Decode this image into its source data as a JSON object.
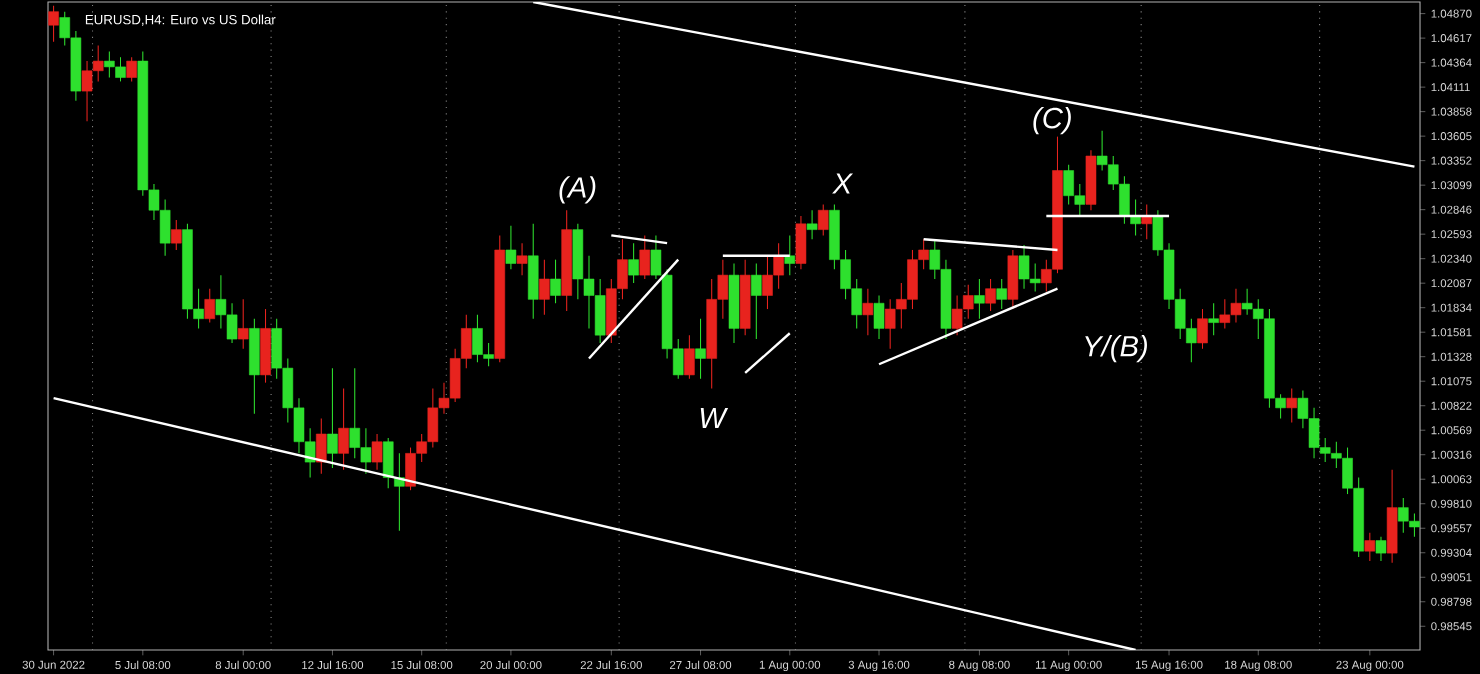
{
  "chart_data": {
    "type": "candlestick",
    "title": "EURUSD,H4:  Euro vs US Dollar",
    "categories": [
      "30 Jun 2022",
      null,
      null,
      null,
      null,
      null,
      null,
      null,
      "5 Jul 08:00",
      null,
      null,
      null,
      null,
      null,
      null,
      null,
      null,
      "8 Jul 00:00",
      null,
      null,
      null,
      null,
      null,
      null,
      null,
      "12 Jul 16:00",
      null,
      null,
      null,
      null,
      null,
      null,
      null,
      "15 Jul 08:00",
      null,
      null,
      null,
      null,
      null,
      null,
      null,
      "20 Jul 00:00",
      null,
      null,
      null,
      null,
      null,
      null,
      null,
      null,
      "22 Jul 16:00",
      null,
      null,
      null,
      null,
      null,
      null,
      null,
      "27 Jul 08:00",
      null,
      null,
      null,
      null,
      null,
      null,
      null,
      "1 Aug 00:00",
      null,
      null,
      null,
      null,
      null,
      null,
      null,
      "3 Aug 16:00",
      null,
      null,
      null,
      null,
      null,
      null,
      null,
      null,
      "8 Aug 08:00",
      null,
      null,
      null,
      null,
      null,
      null,
      null,
      "11 Aug 00:00",
      null,
      null,
      null,
      null,
      null,
      null,
      null,
      null,
      "15 Aug 16:00",
      null,
      null,
      null,
      null,
      null,
      null,
      null,
      "18 Aug 08:00",
      null,
      null,
      null,
      null,
      null,
      null,
      null,
      null,
      null,
      "23 Aug 00:00",
      null,
      null,
      null,
      null
    ],
    "ohlc": [
      [
        1.0475,
        1.0495,
        1.0458,
        1.0489
      ],
      [
        1.0483,
        1.0489,
        1.0454,
        1.0462
      ],
      [
        1.0462,
        1.0469,
        1.0397,
        1.0407
      ],
      [
        1.0407,
        1.0438,
        1.0376,
        1.0428
      ],
      [
        1.0428,
        1.0454,
        1.0417,
        1.0438
      ],
      [
        1.0438,
        1.0448,
        1.0421,
        1.0432
      ],
      [
        1.0432,
        1.0442,
        1.0417,
        1.0421
      ],
      [
        1.0421,
        1.0442,
        1.0417,
        1.0438
      ],
      [
        1.0438,
        1.0448,
        1.0299,
        1.0305
      ],
      [
        1.0305,
        1.0311,
        1.0274,
        1.0284
      ],
      [
        1.0284,
        1.0295,
        1.0237,
        1.025
      ],
      [
        1.025,
        1.0274,
        1.0243,
        1.0264
      ],
      [
        1.0264,
        1.027,
        1.0172,
        1.0182
      ],
      [
        1.0182,
        1.0203,
        1.0162,
        1.0172
      ],
      [
        1.0172,
        1.0203,
        1.0168,
        1.0192
      ],
      [
        1.0192,
        1.0217,
        1.0162,
        1.0176
      ],
      [
        1.0176,
        1.0188,
        1.0147,
        1.0151
      ],
      [
        1.0151,
        1.0192,
        1.0141,
        1.0162
      ],
      [
        1.0162,
        1.0172,
        1.0074,
        1.0114
      ],
      [
        1.0114,
        1.0182,
        1.0106,
        1.0162
      ],
      [
        1.0162,
        1.0172,
        1.011,
        1.0121
      ],
      [
        1.0121,
        1.0131,
        1.0065,
        1.008
      ],
      [
        1.008,
        1.009,
        1.0033,
        1.0045
      ],
      [
        1.0045,
        1.0059,
        1.0008,
        1.0024
      ],
      [
        1.0024,
        1.0069,
        1.0012,
        1.0053
      ],
      [
        1.0053,
        1.0121,
        1.0018,
        1.0033
      ],
      [
        1.0033,
        1.01,
        1.0016,
        1.0059
      ],
      [
        1.0059,
        1.0121,
        1.0028,
        1.0039
      ],
      [
        1.0039,
        1.0059,
        1.0012,
        1.0024
      ],
      [
        1.0024,
        1.0053,
        1.0016,
        1.0045
      ],
      [
        1.0045,
        1.0049,
        0.9997,
        1.0008
      ],
      [
        1.0008,
        1.0033,
        0.9953,
        0.9999
      ],
      [
        0.9999,
        1.0039,
        0.9995,
        1.0033
      ],
      [
        1.0033,
        1.0053,
        1.0024,
        1.0045
      ],
      [
        1.0045,
        1.01,
        1.0039,
        1.008
      ],
      [
        1.008,
        1.0106,
        1.0074,
        1.009
      ],
      [
        1.009,
        1.0141,
        1.0086,
        1.0131
      ],
      [
        1.0131,
        1.0176,
        1.0121,
        1.0162
      ],
      [
        1.0162,
        1.0176,
        1.0127,
        1.0135
      ],
      [
        1.0135,
        1.0147,
        1.0123,
        1.0131
      ],
      [
        1.0131,
        1.0258,
        1.0127,
        1.0243
      ],
      [
        1.0243,
        1.0268,
        1.0223,
        1.0229
      ],
      [
        1.0229,
        1.025,
        1.0217,
        1.0237
      ],
      [
        1.0237,
        1.027,
        1.0172,
        1.0192
      ],
      [
        1.0192,
        1.0233,
        1.0176,
        1.0213
      ],
      [
        1.0213,
        1.0233,
        1.0188,
        1.0196
      ],
      [
        1.0196,
        1.0284,
        1.018,
        1.0264
      ],
      [
        1.0264,
        1.027,
        1.0192,
        1.0213
      ],
      [
        1.0213,
        1.0237,
        1.0162,
        1.0196
      ],
      [
        1.0196,
        1.0213,
        1.0147,
        1.0155
      ],
      [
        1.0155,
        1.0213,
        1.0147,
        1.0203
      ],
      [
        1.0203,
        1.0254,
        1.0192,
        1.0233
      ],
      [
        1.0233,
        1.025,
        1.0209,
        1.0217
      ],
      [
        1.0217,
        1.0258,
        1.0213,
        1.0243
      ],
      [
        1.0243,
        1.0258,
        1.0213,
        1.0217
      ],
      [
        1.0217,
        1.0223,
        1.0131,
        1.0141
      ],
      [
        1.0141,
        1.0151,
        1.011,
        1.0114
      ],
      [
        1.0114,
        1.0155,
        1.011,
        1.0141
      ],
      [
        1.0141,
        1.0172,
        1.011,
        1.0131
      ],
      [
        1.0131,
        1.0213,
        1.01,
        1.0192
      ],
      [
        1.0192,
        1.0233,
        1.0172,
        1.0217
      ],
      [
        1.0217,
        1.0229,
        1.0147,
        1.0162
      ],
      [
        1.0162,
        1.0233,
        1.0155,
        1.0217
      ],
      [
        1.0217,
        1.0229,
        1.0151,
        1.0196
      ],
      [
        1.0196,
        1.0237,
        1.0182,
        1.0217
      ],
      [
        1.0217,
        1.025,
        1.0203,
        1.0237
      ],
      [
        1.0237,
        1.0258,
        1.0217,
        1.0229
      ],
      [
        1.0229,
        1.0278,
        1.0223,
        1.027
      ],
      [
        1.027,
        1.0284,
        1.0254,
        1.0264
      ],
      [
        1.0264,
        1.029,
        1.0258,
        1.0284
      ],
      [
        1.0284,
        1.029,
        1.0223,
        1.0233
      ],
      [
        1.0233,
        1.0243,
        1.0192,
        1.0203
      ],
      [
        1.0203,
        1.0213,
        1.0162,
        1.0176
      ],
      [
        1.0176,
        1.0203,
        1.0155,
        1.0188
      ],
      [
        1.0188,
        1.0196,
        1.0151,
        1.0162
      ],
      [
        1.0162,
        1.0192,
        1.0141,
        1.0182
      ],
      [
        1.0182,
        1.0209,
        1.0162,
        1.0192
      ],
      [
        1.0192,
        1.0243,
        1.0182,
        1.0233
      ],
      [
        1.0233,
        1.0254,
        1.0223,
        1.0243
      ],
      [
        1.0243,
        1.0254,
        1.0213,
        1.0223
      ],
      [
        1.0223,
        1.0233,
        1.0151,
        1.0162
      ],
      [
        1.0162,
        1.0196,
        1.0155,
        1.0182
      ],
      [
        1.0182,
        1.0207,
        1.0172,
        1.0196
      ],
      [
        1.0196,
        1.0213,
        1.0172,
        1.0188
      ],
      [
        1.0188,
        1.0213,
        1.018,
        1.0203
      ],
      [
        1.0203,
        1.0213,
        1.0182,
        1.0192
      ],
      [
        1.0192,
        1.0243,
        1.0182,
        1.0237
      ],
      [
        1.0237,
        1.0248,
        1.0203,
        1.0213
      ],
      [
        1.0213,
        1.0229,
        1.02,
        1.0209
      ],
      [
        1.0209,
        1.0233,
        1.02,
        1.0223
      ],
      [
        1.0223,
        1.036,
        1.0219,
        1.0325
      ],
      [
        1.0325,
        1.0331,
        1.029,
        1.0299
      ],
      [
        1.0299,
        1.0311,
        1.0278,
        1.029
      ],
      [
        1.029,
        1.0346,
        1.0284,
        1.034
      ],
      [
        1.034,
        1.0366,
        1.0325,
        1.0331
      ],
      [
        1.0331,
        1.034,
        1.0305,
        1.0311
      ],
      [
        1.0311,
        1.0319,
        1.027,
        1.0278
      ],
      [
        1.0278,
        1.0295,
        1.0258,
        1.027
      ],
      [
        1.027,
        1.029,
        1.0254,
        1.0278
      ],
      [
        1.0278,
        1.0284,
        1.0237,
        1.0243
      ],
      [
        1.0243,
        1.025,
        1.0182,
        1.0192
      ],
      [
        1.0192,
        1.0203,
        1.0151,
        1.0162
      ],
      [
        1.0162,
        1.0172,
        1.0127,
        1.0147
      ],
      [
        1.0147,
        1.0182,
        1.0141,
        1.0172
      ],
      [
        1.0172,
        1.0188,
        1.0155,
        1.0168
      ],
      [
        1.0168,
        1.0192,
        1.0162,
        1.0176
      ],
      [
        1.0176,
        1.0203,
        1.0168,
        1.0188
      ],
      [
        1.0188,
        1.0203,
        1.0176,
        1.0182
      ],
      [
        1.0182,
        1.0192,
        1.0151,
        1.0172
      ],
      [
        1.0172,
        1.0182,
        1.008,
        1.009
      ],
      [
        1.009,
        1.0094,
        1.0069,
        1.008
      ],
      [
        1.008,
        1.01,
        1.0065,
        1.009
      ],
      [
        1.009,
        1.0098,
        1.0059,
        1.0069
      ],
      [
        1.0069,
        1.008,
        1.0028,
        1.0039
      ],
      [
        1.0039,
        1.0049,
        1.0024,
        1.0033
      ],
      [
        1.0033,
        1.0045,
        1.0018,
        1.0028
      ],
      [
        1.0028,
        1.0039,
        0.9991,
        0.9997
      ],
      [
        0.9997,
        1.0008,
        0.9926,
        0.9932
      ],
      [
        0.9932,
        0.9951,
        0.9922,
        0.9943
      ],
      [
        0.9943,
        0.9947,
        0.9922,
        0.993
      ],
      [
        0.993,
        1.0016,
        0.992,
        0.9977
      ],
      [
        0.9977,
        0.9987,
        0.9951,
        0.9963
      ],
      [
        0.9963,
        0.9971,
        0.9947,
        0.9957
      ]
    ],
    "colors": [
      "#e8231e",
      "#2ee02e",
      "#2ee02e",
      "#e8231e",
      "#e8231e",
      "#2ee02e",
      "#2ee02e",
      "#e8231e",
      "#2ee02e",
      "#2ee02e",
      "#2ee02e",
      "#e8231e",
      "#2ee02e",
      "#2ee02e",
      "#e8231e",
      "#2ee02e",
      "#2ee02e",
      "#e8231e",
      "#2ee02e",
      "#e8231e",
      "#2ee02e",
      "#2ee02e",
      "#2ee02e",
      "#2ee02e",
      "#e8231e",
      "#2ee02e",
      "#e8231e",
      "#2ee02e",
      "#2ee02e",
      "#e8231e",
      "#2ee02e",
      "#2ee02e",
      "#e8231e",
      "#e8231e",
      "#e8231e",
      "#e8231e",
      "#e8231e",
      "#e8231e",
      "#2ee02e",
      "#2ee02e",
      "#e8231e",
      "#2ee02e",
      "#e8231e",
      "#2ee02e",
      "#e8231e",
      "#2ee02e",
      "#e8231e",
      "#2ee02e",
      "#2ee02e",
      "#2ee02e",
      "#e8231e",
      "#e8231e",
      "#2ee02e",
      "#e8231e",
      "#2ee02e",
      "#2ee02e",
      "#2ee02e",
      "#e8231e",
      "#2ee02e",
      "#e8231e",
      "#e8231e",
      "#2ee02e",
      "#e8231e",
      "#2ee02e",
      "#e8231e",
      "#e8231e",
      "#2ee02e",
      "#e8231e",
      "#2ee02e",
      "#e8231e",
      "#2ee02e",
      "#2ee02e",
      "#2ee02e",
      "#e8231e",
      "#2ee02e",
      "#e8231e",
      "#e8231e",
      "#e8231e",
      "#e8231e",
      "#2ee02e",
      "#2ee02e",
      "#e8231e",
      "#e8231e",
      "#2ee02e",
      "#e8231e",
      "#2ee02e",
      "#e8231e",
      "#2ee02e",
      "#2ee02e",
      "#e8231e",
      "#e8231e",
      "#2ee02e",
      "#2ee02e",
      "#e8231e",
      "#2ee02e",
      "#2ee02e",
      "#2ee02e",
      "#2ee02e",
      "#e8231e",
      "#2ee02e",
      "#2ee02e",
      "#2ee02e",
      "#2ee02e",
      "#e8231e",
      "#2ee02e",
      "#e8231e",
      "#e8231e",
      "#2ee02e",
      "#2ee02e",
      "#2ee02e",
      "#2ee02e",
      "#e8231e",
      "#2ee02e",
      "#2ee02e",
      "#2ee02e",
      "#2ee02e",
      "#2ee02e",
      "#2ee02e",
      "#e8231e",
      "#2ee02e",
      "#e8231e",
      "#2ee02e",
      "#2ee02e"
    ],
    "series": [
      {
        "type": "line",
        "color": "#ffffff",
        "values": [
          1.009,
          null,
          null,
          null,
          null,
          null,
          null,
          null,
          null,
          null,
          null,
          null,
          null,
          null,
          null,
          null,
          null,
          null,
          null,
          null,
          null,
          null,
          null,
          null,
          null,
          null,
          null,
          null,
          null,
          null,
          null,
          null,
          null,
          null,
          null,
          null,
          null,
          null,
          null,
          null,
          null,
          null,
          null,
          null,
          null,
          null,
          null,
          null,
          null,
          null,
          null,
          null,
          null,
          null,
          null,
          null,
          null,
          null,
          null,
          null,
          null,
          null,
          null,
          null,
          null,
          null,
          null,
          null,
          null,
          null,
          null,
          null,
          null,
          null,
          null,
          null,
          null,
          null,
          null,
          null,
          null,
          null,
          null,
          null,
          null,
          null,
          null,
          null,
          null,
          null,
          null,
          null,
          null,
          null,
          null,
          null,
          null,
          0.983,
          null,
          null,
          null,
          null,
          null,
          null,
          null,
          null,
          null,
          null,
          null,
          null,
          null,
          null,
          null,
          null,
          null,
          null,
          null,
          null,
          null,
          null,
          null,
          null,
          null
        ]
      },
      {
        "type": "line",
        "color": "#ffffff",
        "values": [
          null,
          null,
          null,
          null,
          null,
          null,
          null,
          null,
          null,
          null,
          null,
          null,
          null,
          null,
          null,
          null,
          null,
          null,
          null,
          null,
          null,
          null,
          null,
          null,
          null,
          null,
          null,
          null,
          null,
          null,
          null,
          null,
          null,
          null,
          null,
          null,
          null,
          null,
          null,
          null,
          null,
          null,
          null,
          1.0499,
          null,
          null,
          null,
          null,
          null,
          null,
          null,
          null,
          null,
          null,
          null,
          null,
          null,
          null,
          null,
          null,
          null,
          null,
          null,
          null,
          null,
          null,
          null,
          null,
          null,
          null,
          null,
          null,
          null,
          null,
          null,
          null,
          null,
          null,
          null,
          null,
          null,
          null,
          null,
          null,
          null,
          null,
          null,
          null,
          null,
          null,
          null,
          null,
          null,
          null,
          null,
          null,
          null,
          null,
          null,
          null,
          null,
          null,
          null,
          null,
          null,
          null,
          null,
          null,
          null,
          null,
          null,
          null,
          null,
          null,
          null,
          null,
          null,
          null,
          null,
          null,
          null,
          null,
          1.0329
        ]
      },
      {
        "type": "line",
        "color": "#ffffff",
        "values": [
          null,
          null,
          null,
          null,
          null,
          null,
          null,
          null,
          null,
          null,
          null,
          null,
          null,
          null,
          null,
          null,
          null,
          null,
          null,
          null,
          null,
          null,
          null,
          null,
          null,
          null,
          null,
          null,
          null,
          null,
          null,
          null,
          null,
          null,
          null,
          null,
          null,
          null,
          null,
          null,
          null,
          null,
          null,
          null,
          null,
          null,
          null,
          null,
          1.0131,
          null,
          null,
          null,
          null,
          null,
          null,
          null,
          1.0233,
          null,
          null,
          null,
          null,
          null,
          null,
          null,
          null,
          null,
          null,
          null,
          null,
          null,
          null,
          null,
          null,
          null,
          null,
          null,
          null,
          null,
          null,
          null,
          null,
          null,
          null,
          null,
          null,
          null,
          null,
          null,
          null,
          null,
          null,
          null,
          null,
          null,
          null,
          null,
          null,
          null,
          null,
          null,
          null,
          null,
          null,
          null,
          null,
          null,
          null,
          null,
          null,
          null,
          null,
          null,
          null,
          null,
          null,
          null,
          null,
          null,
          null,
          null,
          null,
          null,
          null
        ]
      },
      {
        "type": "line",
        "color": "#ffffff",
        "values": [
          null,
          null,
          null,
          null,
          null,
          null,
          null,
          null,
          null,
          null,
          null,
          null,
          null,
          null,
          null,
          null,
          null,
          null,
          null,
          null,
          null,
          null,
          null,
          null,
          null,
          null,
          null,
          null,
          null,
          null,
          null,
          null,
          null,
          null,
          null,
          null,
          null,
          null,
          null,
          null,
          null,
          null,
          null,
          null,
          null,
          null,
          null,
          null,
          null,
          null,
          1.0258,
          null,
          null,
          null,
          null,
          1.025,
          null,
          null,
          null,
          null,
          null,
          null,
          null,
          null,
          null,
          null,
          null,
          null,
          null,
          null,
          null,
          null,
          null,
          null,
          null,
          null,
          null,
          null,
          null,
          null,
          null,
          null,
          null,
          null,
          null,
          null,
          null,
          null,
          null,
          null,
          null,
          null,
          null,
          null,
          null,
          null,
          null,
          null,
          null,
          null,
          null,
          null,
          null,
          null,
          null,
          null,
          null,
          null,
          null,
          null,
          null,
          null,
          null,
          null,
          null,
          null,
          null,
          null,
          null,
          null,
          null,
          null,
          null
        ]
      },
      {
        "type": "line",
        "color": "#ffffff",
        "values": [
          null,
          null,
          null,
          null,
          null,
          null,
          null,
          null,
          null,
          null,
          null,
          null,
          null,
          null,
          null,
          null,
          null,
          null,
          null,
          null,
          null,
          null,
          null,
          null,
          null,
          null,
          null,
          null,
          null,
          null,
          null,
          null,
          null,
          null,
          null,
          null,
          null,
          null,
          null,
          null,
          null,
          null,
          null,
          null,
          null,
          null,
          null,
          null,
          null,
          null,
          null,
          null,
          null,
          null,
          null,
          null,
          null,
          null,
          null,
          null,
          1.0237,
          null,
          null,
          null,
          null,
          null,
          1.0237,
          null,
          null,
          null,
          null,
          null,
          null,
          null,
          null,
          null,
          null,
          null,
          null,
          null,
          null,
          null,
          null,
          null,
          null,
          null,
          null,
          null,
          null,
          null,
          null,
          null,
          null,
          null,
          null,
          null,
          null,
          null,
          null,
          null,
          null,
          null,
          null,
          null,
          null,
          null,
          null,
          null,
          null,
          null,
          null,
          null,
          null,
          null,
          null,
          null,
          null,
          null,
          null,
          null,
          null,
          null,
          null
        ]
      },
      {
        "type": "line",
        "color": "#ffffff",
        "values": [
          null,
          null,
          null,
          null,
          null,
          null,
          null,
          null,
          null,
          null,
          null,
          null,
          null,
          null,
          null,
          null,
          null,
          null,
          null,
          null,
          null,
          null,
          null,
          null,
          null,
          null,
          null,
          null,
          null,
          null,
          null,
          null,
          null,
          null,
          null,
          null,
          null,
          null,
          null,
          null,
          null,
          null,
          null,
          null,
          null,
          null,
          null,
          null,
          null,
          null,
          null,
          null,
          null,
          null,
          null,
          null,
          null,
          null,
          null,
          null,
          null,
          null,
          1.0116,
          null,
          null,
          null,
          1.0157,
          null,
          null,
          null,
          null,
          null,
          null,
          null,
          null,
          null,
          null,
          null,
          null,
          null,
          null,
          null,
          null,
          null,
          null,
          null,
          null,
          null,
          null,
          null,
          null,
          null,
          null,
          null,
          null,
          null,
          null,
          null,
          null,
          null,
          null,
          null,
          null,
          null,
          null,
          null,
          null,
          null,
          null,
          null,
          null,
          null,
          null,
          null,
          null,
          null,
          null,
          null,
          null,
          null,
          null,
          null,
          null
        ]
      },
      {
        "type": "line",
        "color": "#ffffff",
        "values": [
          null,
          null,
          null,
          null,
          null,
          null,
          null,
          null,
          null,
          null,
          null,
          null,
          null,
          null,
          null,
          null,
          null,
          null,
          null,
          null,
          null,
          null,
          null,
          null,
          null,
          null,
          null,
          null,
          null,
          null,
          null,
          null,
          null,
          null,
          null,
          null,
          null,
          null,
          null,
          null,
          null,
          null,
          null,
          null,
          null,
          null,
          null,
          null,
          null,
          null,
          null,
          null,
          null,
          null,
          null,
          null,
          null,
          null,
          null,
          null,
          null,
          null,
          null,
          null,
          null,
          null,
          null,
          null,
          null,
          null,
          null,
          null,
          null,
          null,
          1.0125,
          null,
          null,
          null,
          null,
          null,
          null,
          null,
          null,
          null,
          null,
          null,
          null,
          null,
          null,
          null,
          1.0203,
          null,
          null,
          null,
          null,
          null,
          null,
          null,
          null,
          null,
          null,
          null,
          null,
          null,
          null,
          null,
          null,
          null,
          null,
          null,
          null,
          null,
          null,
          null,
          null,
          null,
          null,
          null,
          null,
          null,
          null,
          null,
          null
        ]
      },
      {
        "type": "line",
        "color": "#ffffff",
        "values": [
          null,
          null,
          null,
          null,
          null,
          null,
          null,
          null,
          null,
          null,
          null,
          null,
          null,
          null,
          null,
          null,
          null,
          null,
          null,
          null,
          null,
          null,
          null,
          null,
          null,
          null,
          null,
          null,
          null,
          null,
          null,
          null,
          null,
          null,
          null,
          null,
          null,
          null,
          null,
          null,
          null,
          null,
          null,
          null,
          null,
          null,
          null,
          null,
          null,
          null,
          null,
          null,
          null,
          null,
          null,
          null,
          null,
          null,
          null,
          null,
          null,
          null,
          null,
          null,
          null,
          null,
          null,
          null,
          null,
          null,
          null,
          null,
          null,
          null,
          null,
          null,
          null,
          null,
          1.0254,
          null,
          null,
          null,
          null,
          null,
          null,
          null,
          null,
          null,
          null,
          null,
          1.0243,
          null,
          null,
          null,
          null,
          null,
          null,
          null,
          null,
          null,
          null,
          null,
          null,
          null,
          null,
          null,
          null,
          null,
          null,
          null,
          null,
          null,
          null,
          null,
          null,
          null,
          null,
          null,
          null,
          null,
          null,
          null,
          null
        ]
      },
      {
        "type": "line",
        "color": "#ffffff",
        "values": [
          null,
          null,
          null,
          null,
          null,
          null,
          null,
          null,
          null,
          null,
          null,
          null,
          null,
          null,
          null,
          null,
          null,
          null,
          null,
          null,
          null,
          null,
          null,
          null,
          null,
          null,
          null,
          null,
          null,
          null,
          null,
          null,
          null,
          null,
          null,
          null,
          null,
          null,
          null,
          null,
          null,
          null,
          null,
          null,
          null,
          null,
          null,
          null,
          null,
          null,
          null,
          null,
          null,
          null,
          null,
          null,
          null,
          null,
          null,
          null,
          null,
          null,
          null,
          null,
          null,
          null,
          null,
          null,
          null,
          null,
          null,
          null,
          null,
          null,
          null,
          null,
          null,
          null,
          null,
          null,
          null,
          null,
          null,
          null,
          null,
          null,
          null,
          null,
          null,
          1.0278,
          null,
          null,
          null,
          null,
          null,
          null,
          null,
          null,
          null,
          null,
          1.0278,
          null,
          null,
          null,
          null,
          null,
          null,
          null,
          null,
          null,
          null,
          null,
          null,
          null,
          null,
          null,
          null,
          null,
          null,
          null,
          null,
          null,
          null
        ]
      }
    ],
    "annotations": [
      "(A)",
      "W",
      "X",
      "(C)",
      "Y/(B)"
    ],
    "ylim": [
      0.983,
      1.0499
    ],
    "yticks": [
      {
        "value": 1.0487,
        "label": "1.04870"
      },
      {
        "value": 1.04617,
        "label": "1.04617"
      },
      {
        "value": 1.04364,
        "label": "1.04364"
      },
      {
        "value": 1.04111,
        "label": "1.04111"
      },
      {
        "value": 1.03858,
        "label": "1.03858"
      },
      {
        "value": 1.03605,
        "label": "1.03605"
      },
      {
        "value": 1.03352,
        "label": "1.03352"
      },
      {
        "value": 1.03099,
        "label": "1.03099"
      },
      {
        "value": 1.02846,
        "label": "1.02846"
      },
      {
        "value": 1.02593,
        "label": "1.02593"
      },
      {
        "value": 1.0234,
        "label": "1.02340"
      },
      {
        "value": 1.02087,
        "label": "1.02087"
      },
      {
        "value": 1.01834,
        "label": "1.01834"
      },
      {
        "value": 1.01581,
        "label": "1.01581"
      },
      {
        "value": 1.01328,
        "label": "1.01328"
      },
      {
        "value": 1.01075,
        "label": "1.01075"
      },
      {
        "value": 1.00822,
        "label": "1.00822"
      },
      {
        "value": 1.00569,
        "label": "1.00569"
      },
      {
        "value": 1.00316,
        "label": "1.00316"
      },
      {
        "value": 1.00063,
        "label": "1.00063"
      },
      {
        "value": 0.9981,
        "label": "0.99810"
      },
      {
        "value": 0.99557,
        "label": "0.99557"
      },
      {
        "value": 0.99304,
        "label": "0.99304"
      },
      {
        "value": 0.99051,
        "label": "0.99051"
      },
      {
        "value": 0.98798,
        "label": "0.98798"
      },
      {
        "value": 0.98545,
        "label": "0.98545"
      }
    ]
  }
}
